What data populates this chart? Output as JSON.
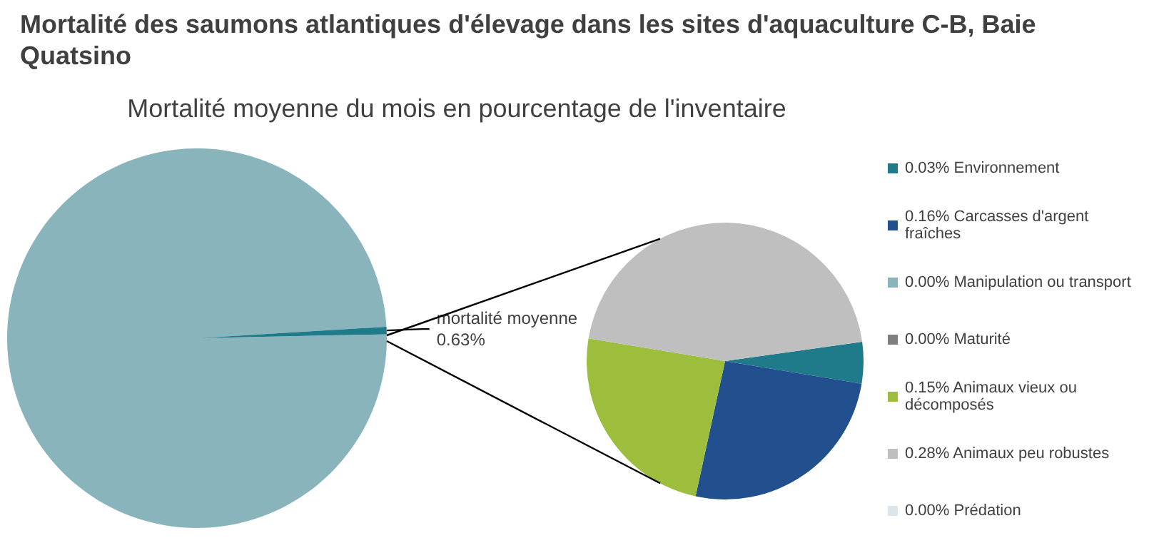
{
  "chart_data": [
    {
      "type": "pie",
      "title": "Mortalité des saumons atlantiques d'élevage dans les sites d'aquaculture C-B, Baie Quatsino",
      "subtitle": "Mortalité moyenne du mois en pourcentage de l'inventaire",
      "categories": [
        null,
        "mortalité moyenne\n0.63%"
      ],
      "values": [
        99.37,
        0.63
      ],
      "colors": [
        "#8ab4bc",
        "#1f7a8a"
      ]
    },
    {
      "type": "pie",
      "categories": [
        "0.03% Environnement",
        "0.16% Carcasses d'argent fraîches",
        "0.00% Manipulation ou transport",
        "0.00% Maturité",
        "0.15% Animaux vieux ou décomposés",
        "0.28% Animaux peu robustes",
        "0.00% Prédation"
      ],
      "values": [
        0.03,
        0.16,
        0.0,
        0.0,
        0.15,
        0.28,
        0.0
      ],
      "colors": [
        "#1f7a8a",
        "#22508f",
        "#8ab4bc",
        "#7f7f7f",
        "#9dbd3c",
        "#bfbfbf",
        "#dce6ea"
      ],
      "legend": "right"
    }
  ]
}
